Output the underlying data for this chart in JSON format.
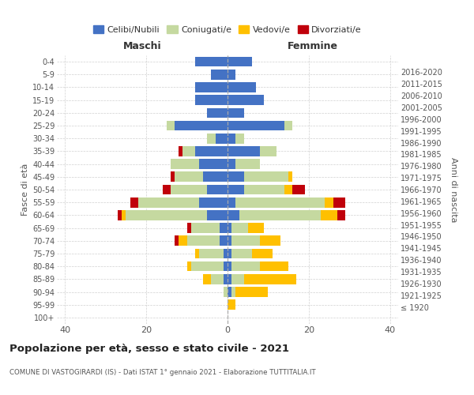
{
  "age_groups": [
    "100+",
    "95-99",
    "90-94",
    "85-89",
    "80-84",
    "75-79",
    "70-74",
    "65-69",
    "60-64",
    "55-59",
    "50-54",
    "45-49",
    "40-44",
    "35-39",
    "30-34",
    "25-29",
    "20-24",
    "15-19",
    "10-14",
    "5-9",
    "0-4"
  ],
  "birth_years": [
    "≤ 1920",
    "1921-1925",
    "1926-1930",
    "1931-1935",
    "1936-1940",
    "1941-1945",
    "1946-1950",
    "1951-1955",
    "1956-1960",
    "1961-1965",
    "1966-1970",
    "1971-1975",
    "1976-1980",
    "1981-1985",
    "1986-1990",
    "1991-1995",
    "1996-2000",
    "2001-2005",
    "2006-2010",
    "2011-2015",
    "2016-2020"
  ],
  "maschi": {
    "celibi": [
      0,
      0,
      0,
      1,
      1,
      1,
      2,
      2,
      5,
      7,
      5,
      6,
      7,
      8,
      3,
      13,
      5,
      8,
      8,
      4,
      8
    ],
    "coniugati": [
      0,
      0,
      1,
      3,
      8,
      6,
      8,
      7,
      20,
      15,
      9,
      7,
      7,
      3,
      2,
      2,
      0,
      0,
      0,
      0,
      0
    ],
    "vedovi": [
      0,
      0,
      0,
      2,
      1,
      1,
      2,
      0,
      1,
      0,
      0,
      0,
      0,
      0,
      0,
      0,
      0,
      0,
      0,
      0,
      0
    ],
    "divorziati": [
      0,
      0,
      0,
      0,
      0,
      0,
      1,
      1,
      1,
      2,
      2,
      1,
      0,
      1,
      0,
      0,
      0,
      0,
      0,
      0,
      0
    ]
  },
  "femmine": {
    "nubili": [
      0,
      0,
      1,
      1,
      1,
      1,
      1,
      1,
      3,
      2,
      4,
      4,
      2,
      8,
      2,
      14,
      4,
      9,
      7,
      2,
      6
    ],
    "coniugate": [
      0,
      0,
      1,
      3,
      7,
      5,
      7,
      4,
      20,
      22,
      10,
      11,
      6,
      4,
      2,
      2,
      0,
      0,
      0,
      0,
      0
    ],
    "vedove": [
      0,
      2,
      8,
      13,
      7,
      5,
      5,
      4,
      4,
      2,
      2,
      1,
      0,
      0,
      0,
      0,
      0,
      0,
      0,
      0,
      0
    ],
    "divorziate": [
      0,
      0,
      0,
      0,
      0,
      0,
      0,
      0,
      2,
      3,
      3,
      0,
      0,
      0,
      0,
      0,
      0,
      0,
      0,
      0,
      0
    ]
  },
  "colors": {
    "celibi": "#4472c4",
    "coniugati": "#c5d9a0",
    "vedovi": "#ffc000",
    "divorziati": "#c0000b"
  },
  "title": "Popolazione per età, sesso e stato civile - 2021",
  "subtitle": "COMUNE DI VASTOGIRARDI (IS) - Dati ISTAT 1° gennaio 2021 - Elaborazione TUTTITALIA.IT",
  "xlabel_left": "Maschi",
  "xlabel_right": "Femmine",
  "ylabel_left": "Fasce di età",
  "ylabel_right": "Anni di nascita",
  "legend_labels": [
    "Celibi/Nubili",
    "Coniugati/e",
    "Vedovi/e",
    "Divorziati/e"
  ],
  "xlim": 42,
  "bg_color": "#ffffff",
  "grid_color": "#cccccc"
}
